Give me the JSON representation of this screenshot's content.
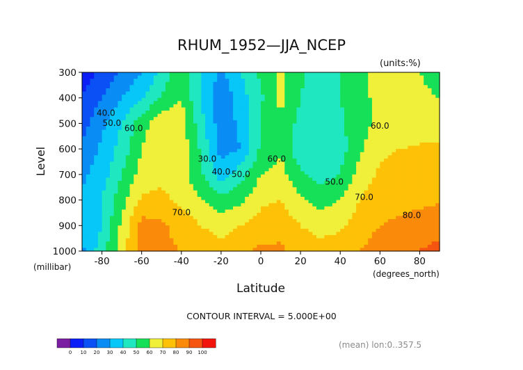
{
  "chart_data": {
    "type": "heatmap",
    "title": "RHUM_1952—JJA_NCEP",
    "units_label": "(units:%)",
    "xlabel": "Latitude",
    "ylabel": "Level",
    "x_units": "(degrees_north)",
    "y_units": "(millibar)",
    "xlim": [
      -90,
      90
    ],
    "ylim": [
      1000,
      300
    ],
    "x_ticks": [
      "-80",
      "-60",
      "-40",
      "-20",
      "0",
      "20",
      "40",
      "60",
      "80"
    ],
    "y_ticks": [
      "300",
      "400",
      "500",
      "600",
      "700",
      "800",
      "900",
      "1000"
    ],
    "contour_interval_text": "CONTOUR INTERVAL = 5.000E+00",
    "footnote": "(mean) lon:0..357.5",
    "contour_labels": [
      "40.0",
      "50.0",
      "60.0",
      "30.0",
      "40.0",
      "50.0",
      "60.0",
      "70.0",
      "50.0",
      "70.0",
      "60.0",
      "80.0"
    ],
    "levels_hpa": [
      300,
      400,
      500,
      600,
      700,
      800,
      900,
      1000
    ],
    "latitudes": [
      -90,
      -80,
      -70,
      -60,
      -50,
      -40,
      -30,
      -20,
      -10,
      0,
      10,
      20,
      30,
      40,
      50,
      60,
      70,
      80,
      90
    ],
    "values": [
      [
        5,
        12,
        22,
        30,
        42,
        60,
        40,
        28,
        40,
        52,
        62,
        52,
        45,
        50,
        58,
        64,
        62,
        60,
        58
      ],
      [
        10,
        20,
        30,
        38,
        52,
        60,
        38,
        22,
        36,
        48,
        62,
        50,
        42,
        50,
        57,
        63,
        62,
        61,
        60
      ],
      [
        16,
        28,
        40,
        56,
        66,
        65,
        44,
        24,
        32,
        52,
        60,
        46,
        40,
        48,
        56,
        63,
        64,
        66,
        67
      ],
      [
        22,
        32,
        44,
        60,
        68,
        66,
        48,
        26,
        30,
        52,
        58,
        42,
        40,
        46,
        58,
        68,
        70,
        71,
        71
      ],
      [
        28,
        35,
        50,
        64,
        68,
        64,
        52,
        34,
        46,
        60,
        64,
        52,
        46,
        50,
        64,
        72,
        74,
        75,
        76
      ],
      [
        32,
        40,
        56,
        72,
        72,
        68,
        60,
        54,
        58,
        68,
        70,
        62,
        56,
        60,
        70,
        76,
        77,
        78,
        79
      ],
      [
        30,
        40,
        62,
        84,
        82,
        76,
        70,
        66,
        70,
        74,
        76,
        70,
        66,
        68,
        76,
        80,
        82,
        84,
        85
      ],
      [
        28,
        46,
        66,
        84,
        82,
        80,
        76,
        74,
        78,
        82,
        82,
        76,
        74,
        76,
        80,
        84,
        86,
        90,
        94
      ]
    ]
  },
  "colorbar": {
    "colors": [
      "#7a1fa2",
      "#0a1ef5",
      "#0b50f5",
      "#0a8cf5",
      "#06c7f7",
      "#1fe8c0",
      "#16df58",
      "#f0f03a",
      "#fdc107",
      "#fa8a0a",
      "#f55510",
      "#f2150c"
    ],
    "tick_labels": [
      "0",
      "10",
      "20",
      "30",
      "40",
      "50",
      "60",
      "70",
      "80",
      "90",
      "100"
    ]
  }
}
